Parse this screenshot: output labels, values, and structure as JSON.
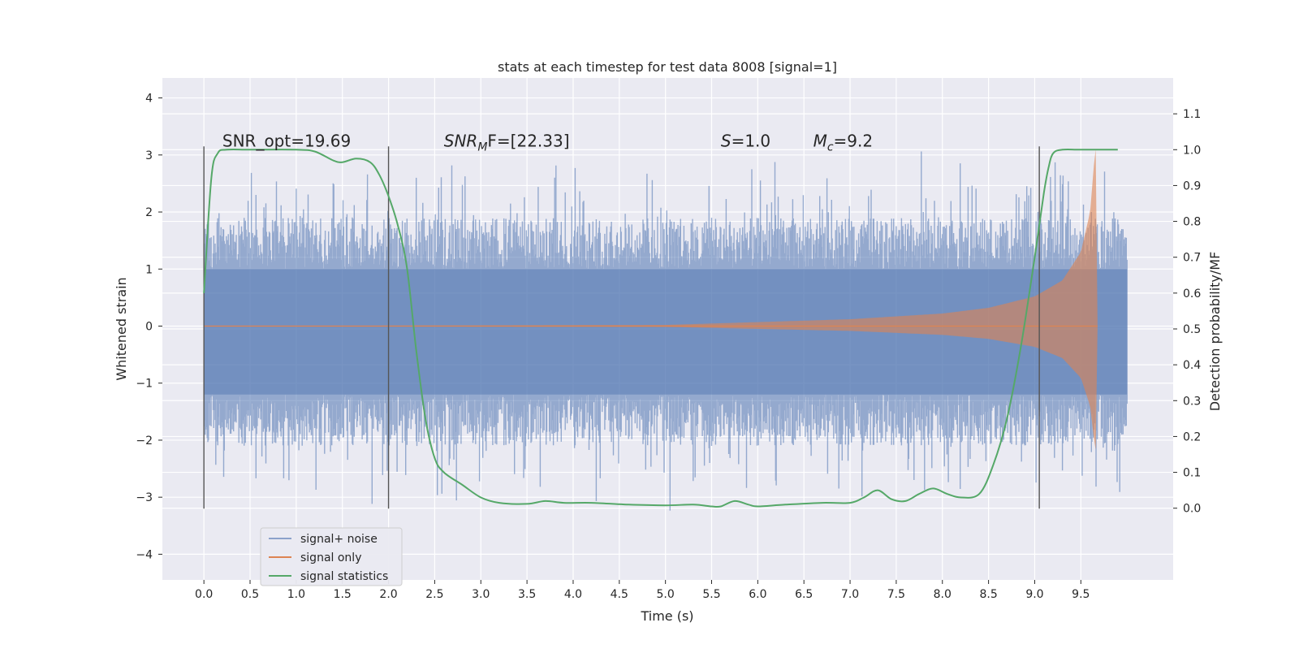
{
  "chart_data": {
    "type": "line",
    "title": "stats at each timestep for test data 8008 [signal=1]",
    "xlabel": "Time (s)",
    "ylabel": "Whitened strain",
    "y2label": "Detection probability/MF",
    "xlim": [
      -0.45,
      10.5
    ],
    "ylim": [
      -4.45,
      4.35
    ],
    "y2lim": [
      -0.2,
      1.2
    ],
    "x_ticks": [
      0.0,
      0.5,
      1.0,
      1.5,
      2.0,
      2.5,
      3.0,
      3.5,
      4.0,
      4.5,
      5.0,
      5.5,
      6.0,
      6.5,
      7.0,
      7.5,
      8.0,
      8.5,
      9.0,
      9.5
    ],
    "x_tick_labels": [
      "0.0",
      "0.5",
      "1.0",
      "1.5",
      "2.0",
      "2.5",
      "3.0",
      "3.5",
      "4.0",
      "4.5",
      "5.0",
      "5.5",
      "6.0",
      "6.5",
      "7.0",
      "7.5",
      "8.0",
      "8.5",
      "9.0",
      "9.5"
    ],
    "y_ticks": [
      -4,
      -3,
      -2,
      -1,
      0,
      1,
      2,
      3,
      4
    ],
    "y_tick_labels": [
      "−4",
      "−3",
      "−2",
      "−1",
      "0",
      "1",
      "2",
      "3",
      "4"
    ],
    "y2_ticks": [
      0.0,
      0.1,
      0.2,
      0.3,
      0.4,
      0.5,
      0.6,
      0.7,
      0.8,
      0.9,
      1.0,
      1.1
    ],
    "y2_tick_labels": [
      "0.0",
      "0.1",
      "0.2",
      "0.3",
      "0.4",
      "0.5",
      "0.6",
      "0.7",
      "0.8",
      "0.9",
      "1.0",
      "1.1"
    ],
    "grid": true,
    "legend_position": "lower-left",
    "series": [
      {
        "name": "signal+ noise",
        "color": "#4c72b0",
        "alpha": 0.5,
        "axis": "left",
        "description_type": "noise band",
        "t_range": [
          0.0,
          10.0
        ],
        "amplitude_envelope": [
          2.9,
          3.6
        ]
      },
      {
        "name": "signal only",
        "color": "#dd8452",
        "axis": "left",
        "t_range": [
          0.0,
          9.68
        ],
        "envelope": [
          [
            0.0,
            0.0
          ],
          [
            5.0,
            0.02
          ],
          [
            7.0,
            0.12
          ],
          [
            8.0,
            0.22
          ],
          [
            8.5,
            0.32
          ],
          [
            9.0,
            0.52
          ],
          [
            9.3,
            0.8
          ],
          [
            9.5,
            1.3
          ],
          [
            9.6,
            2.0
          ],
          [
            9.66,
            3.2
          ],
          [
            9.68,
            0.1
          ]
        ]
      },
      {
        "name": "signal statistics",
        "color": "#55a868",
        "axis": "right",
        "x": [
          0.0,
          0.08,
          0.15,
          0.25,
          0.5,
          1.0,
          1.2,
          1.4,
          1.5,
          1.65,
          1.8,
          1.9,
          2.0,
          2.1,
          2.2,
          2.3,
          2.4,
          2.5,
          2.6,
          2.8,
          3.0,
          3.2,
          3.5,
          3.7,
          3.9,
          4.2,
          4.6,
          5.0,
          5.3,
          5.5,
          5.6,
          5.75,
          5.9,
          6.0,
          6.3,
          6.7,
          7.0,
          7.15,
          7.3,
          7.45,
          7.6,
          7.75,
          7.9,
          8.05,
          8.2,
          8.4,
          8.55,
          8.7,
          8.85,
          9.0,
          9.1,
          9.15,
          9.2,
          9.3,
          9.5,
          9.9
        ],
        "values": [
          0.6,
          0.92,
          0.99,
          1.0,
          1.0,
          1.0,
          0.995,
          0.97,
          0.965,
          0.975,
          0.965,
          0.93,
          0.87,
          0.79,
          0.67,
          0.44,
          0.25,
          0.14,
          0.1,
          0.065,
          0.03,
          0.015,
          0.012,
          0.02,
          0.015,
          0.015,
          0.01,
          0.008,
          0.01,
          0.005,
          0.005,
          0.02,
          0.01,
          0.005,
          0.01,
          0.015,
          0.015,
          0.03,
          0.05,
          0.025,
          0.02,
          0.04,
          0.055,
          0.04,
          0.03,
          0.04,
          0.12,
          0.25,
          0.45,
          0.7,
          0.88,
          0.95,
          0.99,
          1.0,
          1.0,
          1.0
        ]
      }
    ],
    "vlines": [
      0.0,
      2.0,
      9.05
    ],
    "vline_range": [
      -3.2,
      3.15
    ],
    "annotations": [
      {
        "id": "snr-opt",
        "x": 0.2,
        "y": 3.15,
        "text": "SNR_opt=19.69"
      },
      {
        "id": "snr-mf",
        "x": 2.6,
        "y": 3.15,
        "text_main": "SNR",
        "text_sub": "M",
        "text_tail": "F=[22.33]"
      },
      {
        "id": "s-val",
        "x": 5.6,
        "y": 3.15,
        "text_main": "S",
        "text_tail": "=1.0"
      },
      {
        "id": "mc-val",
        "x": 6.6,
        "y": 3.15,
        "text_main": "M",
        "text_sub": "c",
        "text_tail": "=9.2"
      }
    ],
    "colors": {
      "plot_bg": "#eaeaf2",
      "grid": "#ffffff",
      "vline": "#555555"
    }
  }
}
